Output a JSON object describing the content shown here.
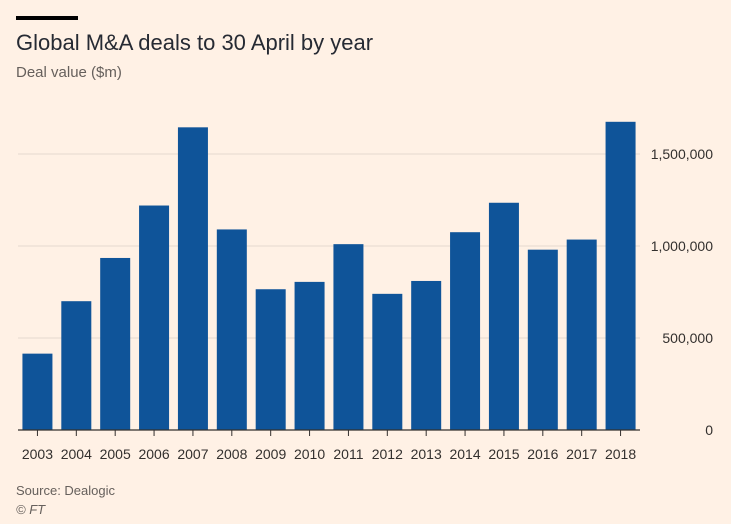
{
  "chart_data": {
    "type": "bar",
    "title": "Global M&A deals to 30 April by year",
    "ylabel": "Deal value ($m)",
    "xlabel": "",
    "categories": [
      "2003",
      "2004",
      "2005",
      "2006",
      "2007",
      "2008",
      "2009",
      "2010",
      "2011",
      "2012",
      "2013",
      "2014",
      "2015",
      "2016",
      "2017",
      "2018"
    ],
    "values": [
      415000,
      700000,
      935000,
      1220000,
      1645000,
      1090000,
      765000,
      805000,
      1010000,
      740000,
      810000,
      1075000,
      1235000,
      980000,
      1035000,
      1675000
    ],
    "ylim": [
      0,
      1750000
    ],
    "yticks": [
      0,
      500000,
      1000000,
      1500000
    ],
    "ytick_labels": [
      "0",
      "500,000",
      "1,000,000",
      "1,500,000"
    ],
    "grid": true,
    "y_axis_side": "right",
    "bar_color": "#0f5499"
  },
  "source": "Source: Dealogic",
  "credit": "© FT"
}
